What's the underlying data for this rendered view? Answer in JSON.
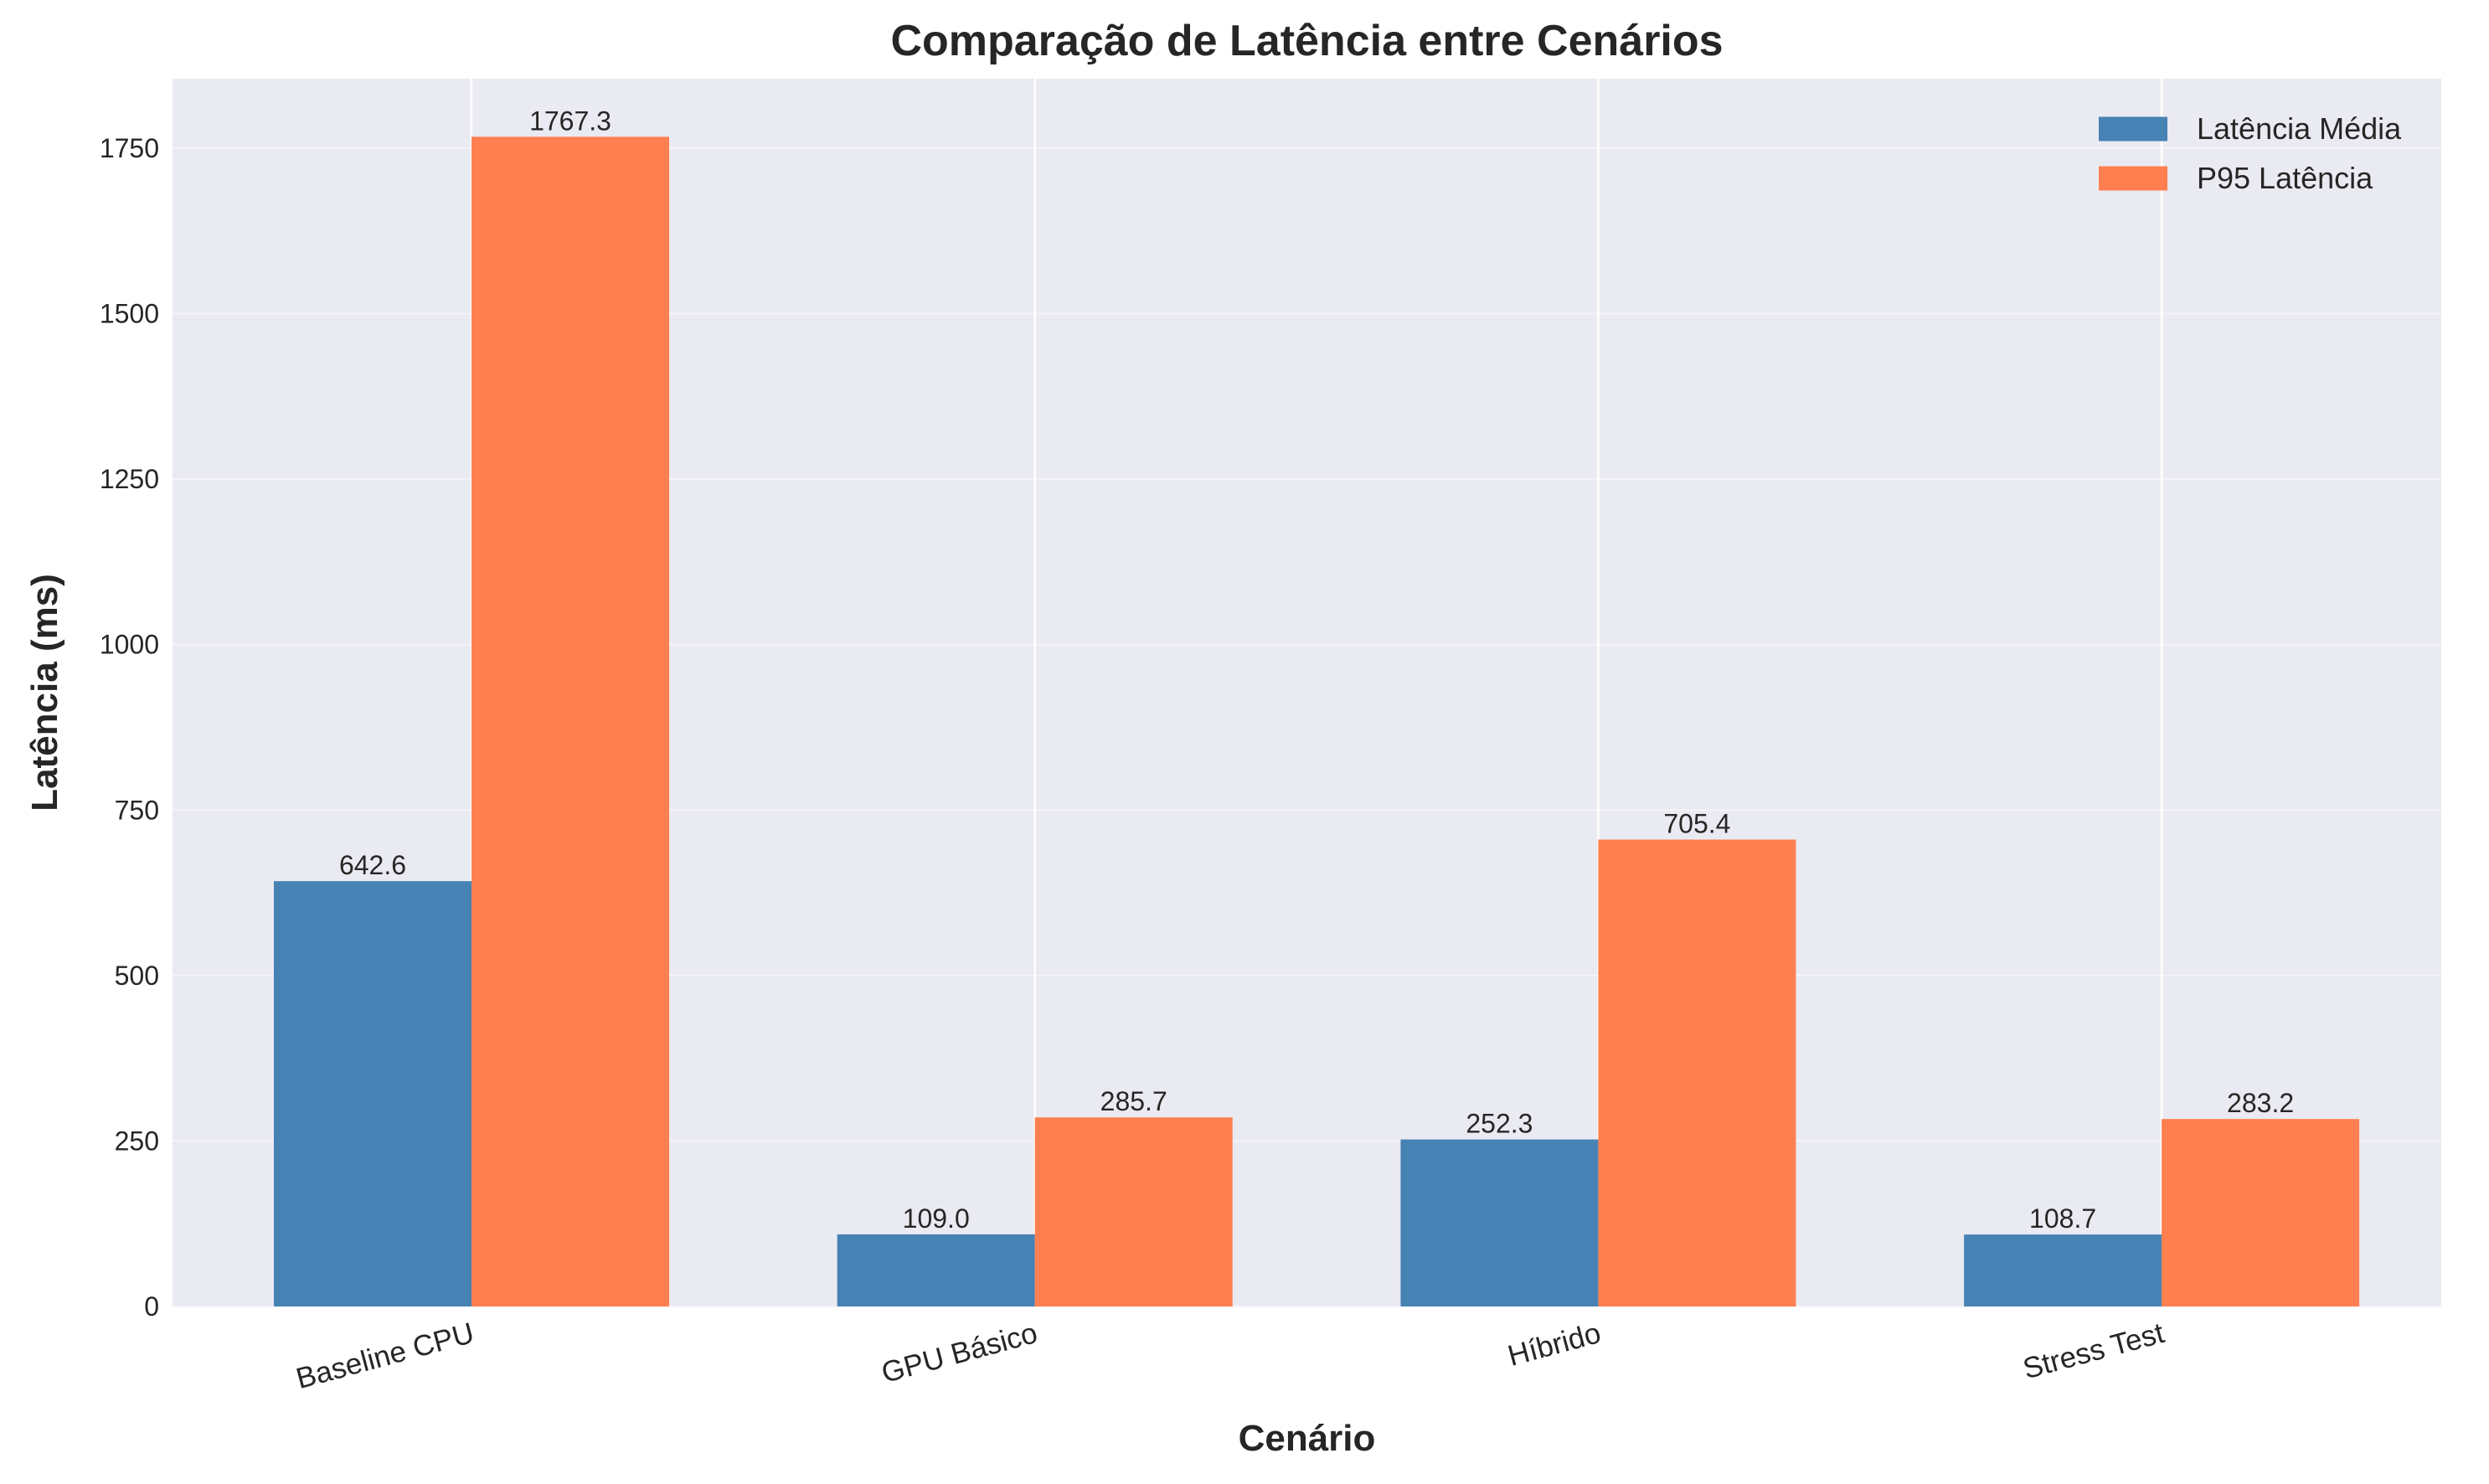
{
  "chart_data": {
    "type": "bar",
    "title": "Comparação de Latência entre Cenários",
    "xlabel": "Cenário",
    "ylabel": "Latência (ms)",
    "categories": [
      "Baseline CPU",
      "GPU Básico",
      "Híbrido",
      "Stress Test"
    ],
    "series": [
      {
        "name": "Latência Média",
        "color": "#4682b4",
        "values": [
          642.6,
          109.0,
          252.3,
          108.7
        ],
        "labels": [
          "642.6",
          "109.0",
          "252.3",
          "108.7"
        ]
      },
      {
        "name": "P95 Latência",
        "color": "#ff7f50",
        "values": [
          1767.3,
          285.7,
          705.4,
          283.2
        ],
        "labels": [
          "1767.3",
          "285.7",
          "705.4",
          "283.2"
        ]
      }
    ],
    "ylim": [
      0,
      1855
    ],
    "yticks": [
      0,
      250,
      500,
      750,
      1000,
      1250,
      1500,
      1750
    ],
    "ytick_labels": [
      "0",
      "250",
      "500",
      "750",
      "1000",
      "1250",
      "1500",
      "1750"
    ],
    "grid": true,
    "legend_position": "top-right",
    "colors": {
      "plot_background": "#eaeaf2",
      "grid": "#ffffff",
      "text": "#262626"
    }
  }
}
